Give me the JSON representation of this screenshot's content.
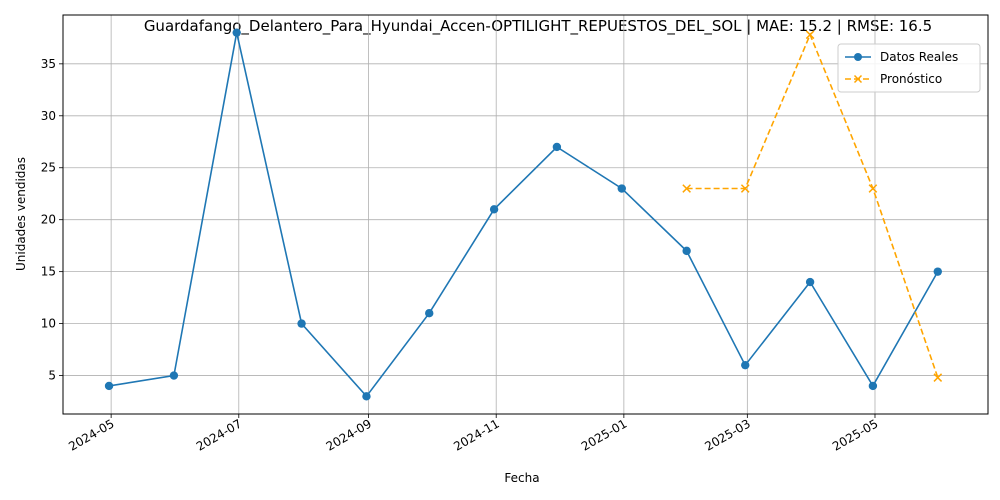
{
  "chart_data": {
    "type": "line",
    "title": "Guardafango_Delantero_Para_Hyundai_Accen-OPTILIGHT_REPUESTOS_DEL_SOL | MAE: 15.2 | RMSE: 16.5",
    "xlabel": "Fecha",
    "ylabel": "Unidades vendidas",
    "grid": true,
    "legend_position": "top-right",
    "xlim": [
      "2024-04-08",
      "2025-06-24"
    ],
    "ylim": [
      1.3,
      39.7
    ],
    "x_ticks": [
      "2024-05",
      "2024-07",
      "2024-09",
      "2024-11",
      "2025-01",
      "2025-03",
      "2025-05"
    ],
    "y_ticks": [
      5,
      10,
      15,
      20,
      25,
      30,
      35
    ],
    "series": [
      {
        "name": "Datos Reales",
        "color": "#1f77b4",
        "style": "solid",
        "marker": "circle",
        "x": [
          "2024-04-30",
          "2024-05-31",
          "2024-06-30",
          "2024-07-31",
          "2024-08-31",
          "2024-09-30",
          "2024-10-31",
          "2024-11-30",
          "2024-12-31",
          "2025-01-31",
          "2025-02-28",
          "2025-03-31",
          "2025-04-30",
          "2025-05-31"
        ],
        "values": [
          4,
          5,
          38,
          10,
          3,
          11,
          21,
          27,
          23,
          17,
          6,
          14,
          4,
          15
        ]
      },
      {
        "name": "Pronóstico",
        "color": "#ffa500",
        "style": "dashed",
        "marker": "x",
        "x": [
          "2025-01-31",
          "2025-02-28",
          "2025-03-31",
          "2025-04-30",
          "2025-05-31"
        ],
        "values": [
          23,
          23,
          37.8,
          23,
          4.8
        ]
      }
    ]
  }
}
